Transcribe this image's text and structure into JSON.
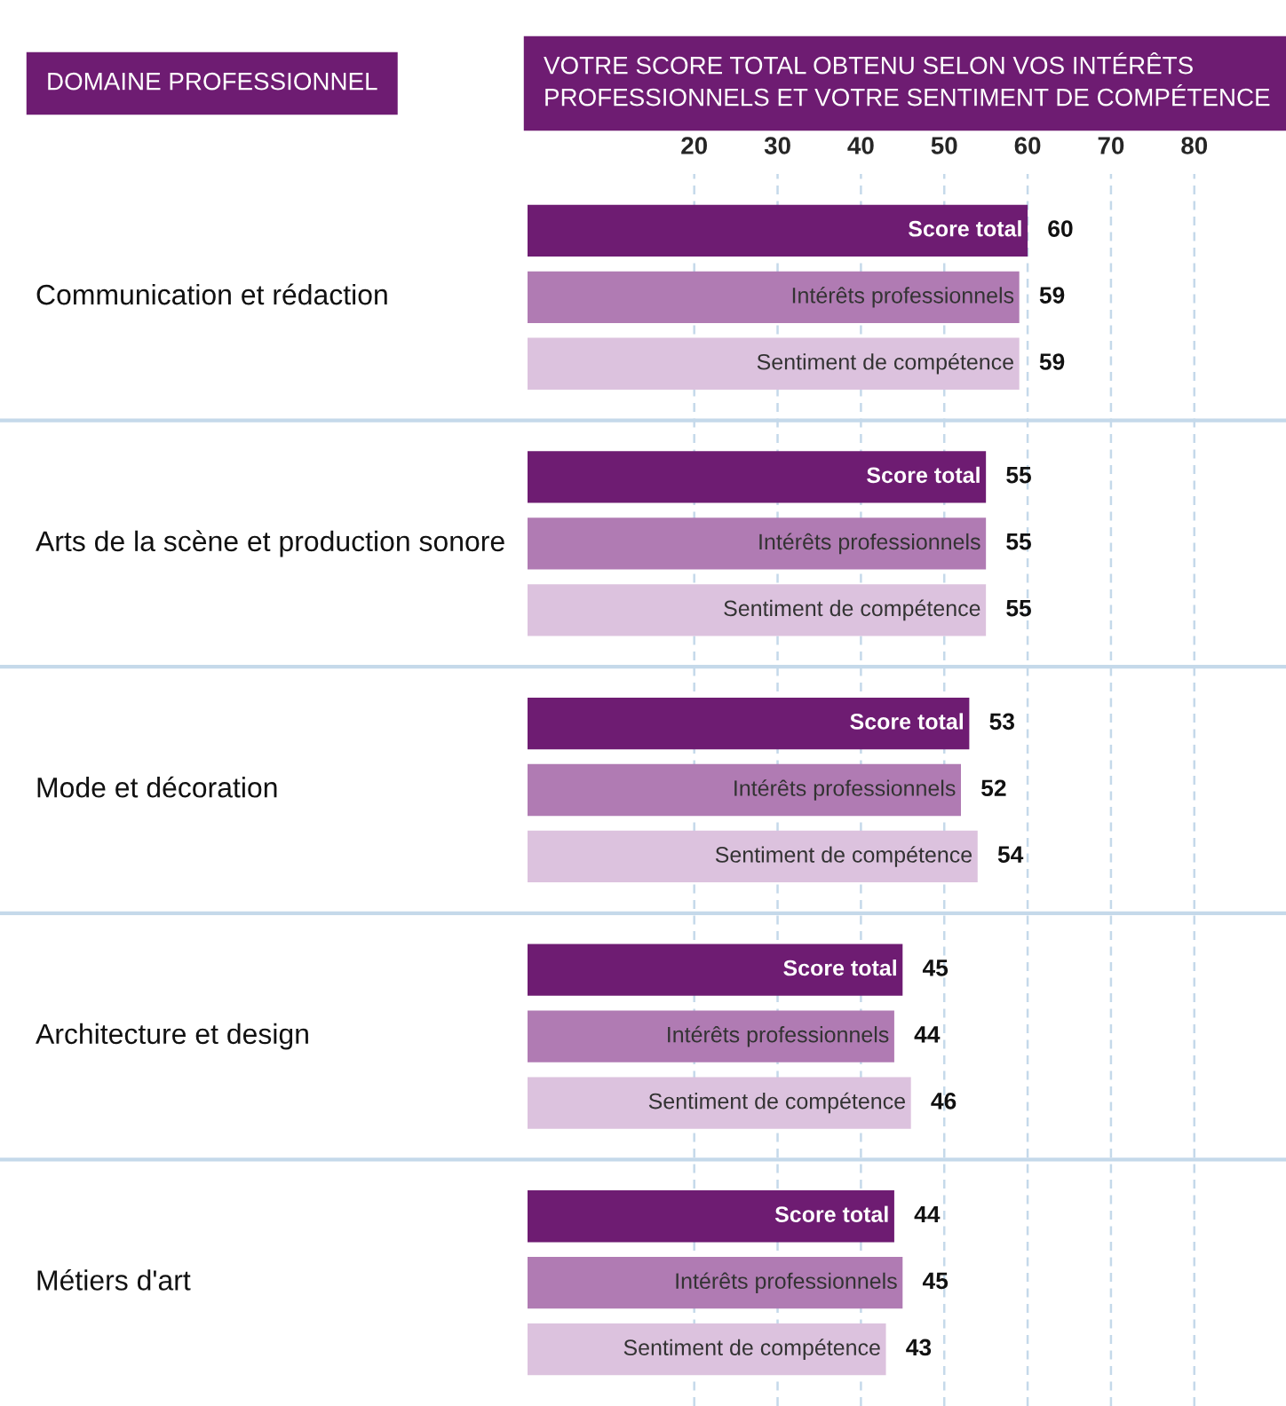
{
  "chart_data": {
    "type": "bar",
    "orientation": "horizontal",
    "ylabel": "DOMAINE PROFESSIONNEL",
    "xlabel": "VOTRE SCORE TOTAL OBTENU SELON VOS INTÉRÊTS PROFESSIONNELS ET VOTRE SENTIMENT DE COMPÉTENCE",
    "categories": [
      "Communication et rédaction",
      "Arts de la scène et production sonore",
      "Mode et décoration",
      "Architecture et design",
      "Métiers d'art"
    ],
    "series": [
      {
        "name": "Score total",
        "color": "#6e1c72",
        "values": [
          60,
          55,
          53,
          45,
          44
        ]
      },
      {
        "name": "Intérêts professionnels",
        "color": "#b07bb3",
        "values": [
          59,
          55,
          52,
          44,
          45
        ]
      },
      {
        "name": "Sentiment de compétence",
        "color": "#dcc2de",
        "values": [
          59,
          55,
          54,
          46,
          43
        ]
      }
    ],
    "xlim": [
      0,
      91
    ],
    "xticks": [
      20,
      30,
      40,
      50,
      60,
      70,
      80
    ],
    "grid": "x",
    "data_labels": true,
    "legend": false
  }
}
